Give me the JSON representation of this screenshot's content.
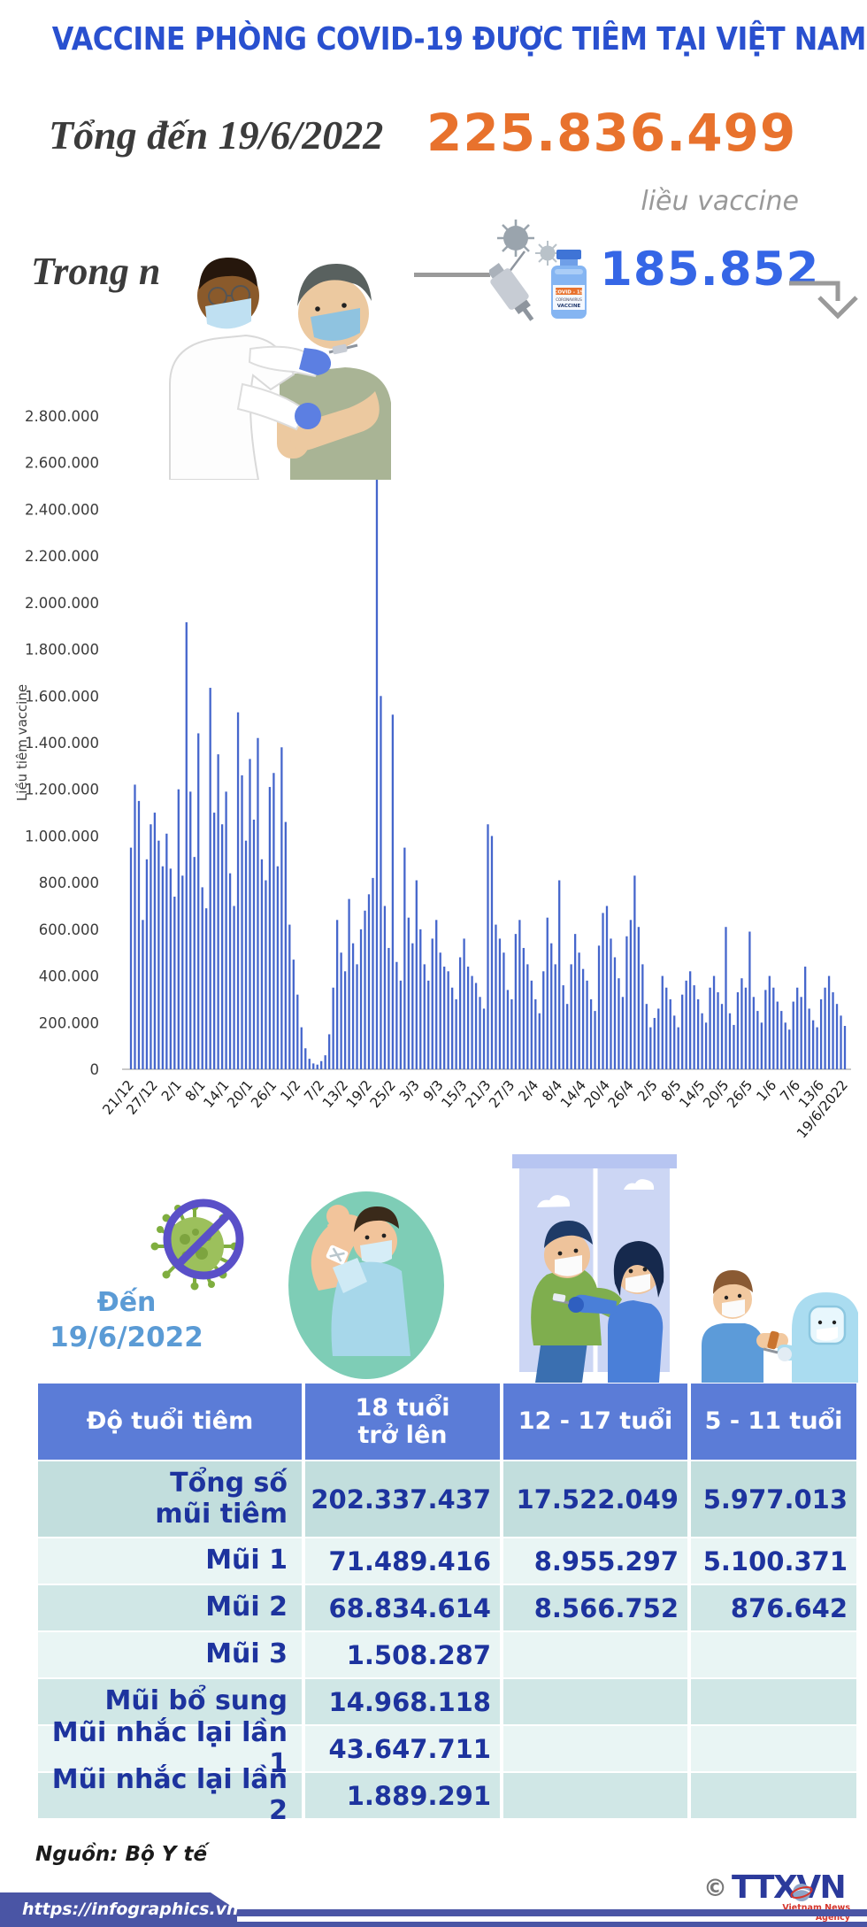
{
  "title": "VACCINE PHÒNG COVID-19 ĐƯỢC TIÊM TẠI VIỆT NAM",
  "total": {
    "label": "Tổng đến 19/6/2022",
    "value": "225.836.499",
    "unit": "liều vaccine"
  },
  "daily": {
    "label": "Trong ngày 19/6/2022",
    "value": "185.852"
  },
  "vial": {
    "line1": "COVID - 19",
    "line2": "CORONAVIRUS",
    "line3": "VACCINE"
  },
  "chart_data": {
    "type": "bar",
    "title": "",
    "xlabel": "",
    "ylabel": "Liều tiêm vaccine",
    "ylim": [
      0,
      2800000
    ],
    "ytick_step": 200000,
    "grid": false,
    "bar_color": "#4566cc",
    "x_tick_step": 6,
    "x_tick_labels": [
      "21/12",
      "27/12",
      "2/1",
      "8/1",
      "14/1",
      "20/1",
      "26/1",
      "1/2",
      "7/2",
      "13/2",
      "19/2",
      "25/2",
      "3/3",
      "9/3",
      "15/3",
      "21/3",
      "27/3",
      "2/4",
      "8/4",
      "14/4",
      "20/4",
      "26/4",
      "2/5",
      "8/5",
      "14/5",
      "20/5",
      "26/5",
      "1/6",
      "7/6",
      "13/6",
      "19/6/2022"
    ],
    "values": [
      950000,
      1220000,
      1150000,
      640000,
      900000,
      1050000,
      1100000,
      980000,
      870000,
      1010000,
      860000,
      740000,
      1200000,
      830000,
      1916000,
      1190000,
      910000,
      1440000,
      780000,
      690000,
      1635000,
      1100000,
      1350000,
      1050000,
      1190000,
      840000,
      700000,
      1530000,
      1260000,
      980000,
      1330000,
      1070000,
      1420000,
      900000,
      810000,
      1210000,
      1270000,
      870000,
      1380000,
      1060000,
      620000,
      470000,
      320000,
      180000,
      90000,
      45000,
      25000,
      20000,
      35000,
      60000,
      150000,
      350000,
      640000,
      500000,
      420000,
      730000,
      540000,
      450000,
      600000,
      680000,
      750000,
      820000,
      2760000,
      1600000,
      700000,
      520000,
      1520000,
      460000,
      380000,
      950000,
      650000,
      540000,
      810000,
      600000,
      450000,
      380000,
      560000,
      640000,
      500000,
      440000,
      420000,
      350000,
      300000,
      480000,
      560000,
      440000,
      400000,
      370000,
      310000,
      260000,
      1050000,
      1000000,
      620000,
      560000,
      500000,
      340000,
      300000,
      580000,
      640000,
      520000,
      450000,
      380000,
      300000,
      240000,
      420000,
      650000,
      540000,
      450000,
      810000,
      360000,
      280000,
      450000,
      580000,
      500000,
      430000,
      380000,
      300000,
      250000,
      530000,
      670000,
      700000,
      560000,
      480000,
      390000,
      310000,
      570000,
      640000,
      830000,
      610000,
      450000,
      280000,
      180000,
      220000,
      260000,
      400000,
      350000,
      300000,
      230000,
      180000,
      320000,
      380000,
      420000,
      360000,
      300000,
      240000,
      200000,
      350000,
      400000,
      330000,
      280000,
      610000,
      240000,
      190000,
      330000,
      390000,
      350000,
      590000,
      310000,
      250000,
      200000,
      340000,
      400000,
      350000,
      290000,
      250000,
      200000,
      170000,
      290000,
      350000,
      310000,
      440000,
      260000,
      210000,
      180000,
      300000,
      350000,
      400000,
      330000,
      280000,
      230000,
      185852
    ]
  },
  "mid": {
    "asof_line1": "Đến",
    "asof_line2": "19/6/2022"
  },
  "table": {
    "headers": [
      "Độ tuổi tiêm",
      "18 tuổi\ntrở lên",
      "12 - 17 tuổi",
      "5 - 11 tuổi"
    ],
    "rows": [
      {
        "label": "Tổng số\nmũi tiêm",
        "values": [
          "202.337.437",
          "17.522.049",
          "5.977.013"
        ]
      },
      {
        "label": "Mũi 1",
        "values": [
          "71.489.416",
          "8.955.297",
          "5.100.371"
        ]
      },
      {
        "label": "Mũi 2",
        "values": [
          "68.834.614",
          "8.566.752",
          "876.642"
        ]
      },
      {
        "label": "Mũi 3",
        "values": [
          "1.508.287",
          "",
          ""
        ]
      },
      {
        "label": "Mũi bổ sung",
        "values": [
          "14.968.118",
          "",
          ""
        ]
      },
      {
        "label": "Mũi nhắc lại lần 1",
        "values": [
          "43.647.711",
          "",
          ""
        ]
      },
      {
        "label": "Mũi nhắc lại lần 2",
        "values": [
          "1.889.291",
          "",
          ""
        ]
      }
    ]
  },
  "source": "Nguồn: Bộ Y tế",
  "footer": {
    "url": "https://infographics.vn",
    "copyright": "©",
    "agency": "TTXVN",
    "agency_sub": "Vietnam News Agency"
  },
  "colors": {
    "title_blue": "#2950cf",
    "total_orange": "#e8722d",
    "daily_blue": "#3566e6",
    "bar_blue": "#4566cc",
    "table_header_blue": "#5b7cd7",
    "row_teal_dark": "#c2dedd",
    "row_teal_mid": "#d0e7e6",
    "row_teal_light": "#e9f5f4",
    "table_text_navy": "#1d339e",
    "asof_blue": "#5b9bd5",
    "footer_blue": "#4a55a5",
    "logo_blue": "#2b3a9b",
    "logo_red": "#d6372e"
  }
}
